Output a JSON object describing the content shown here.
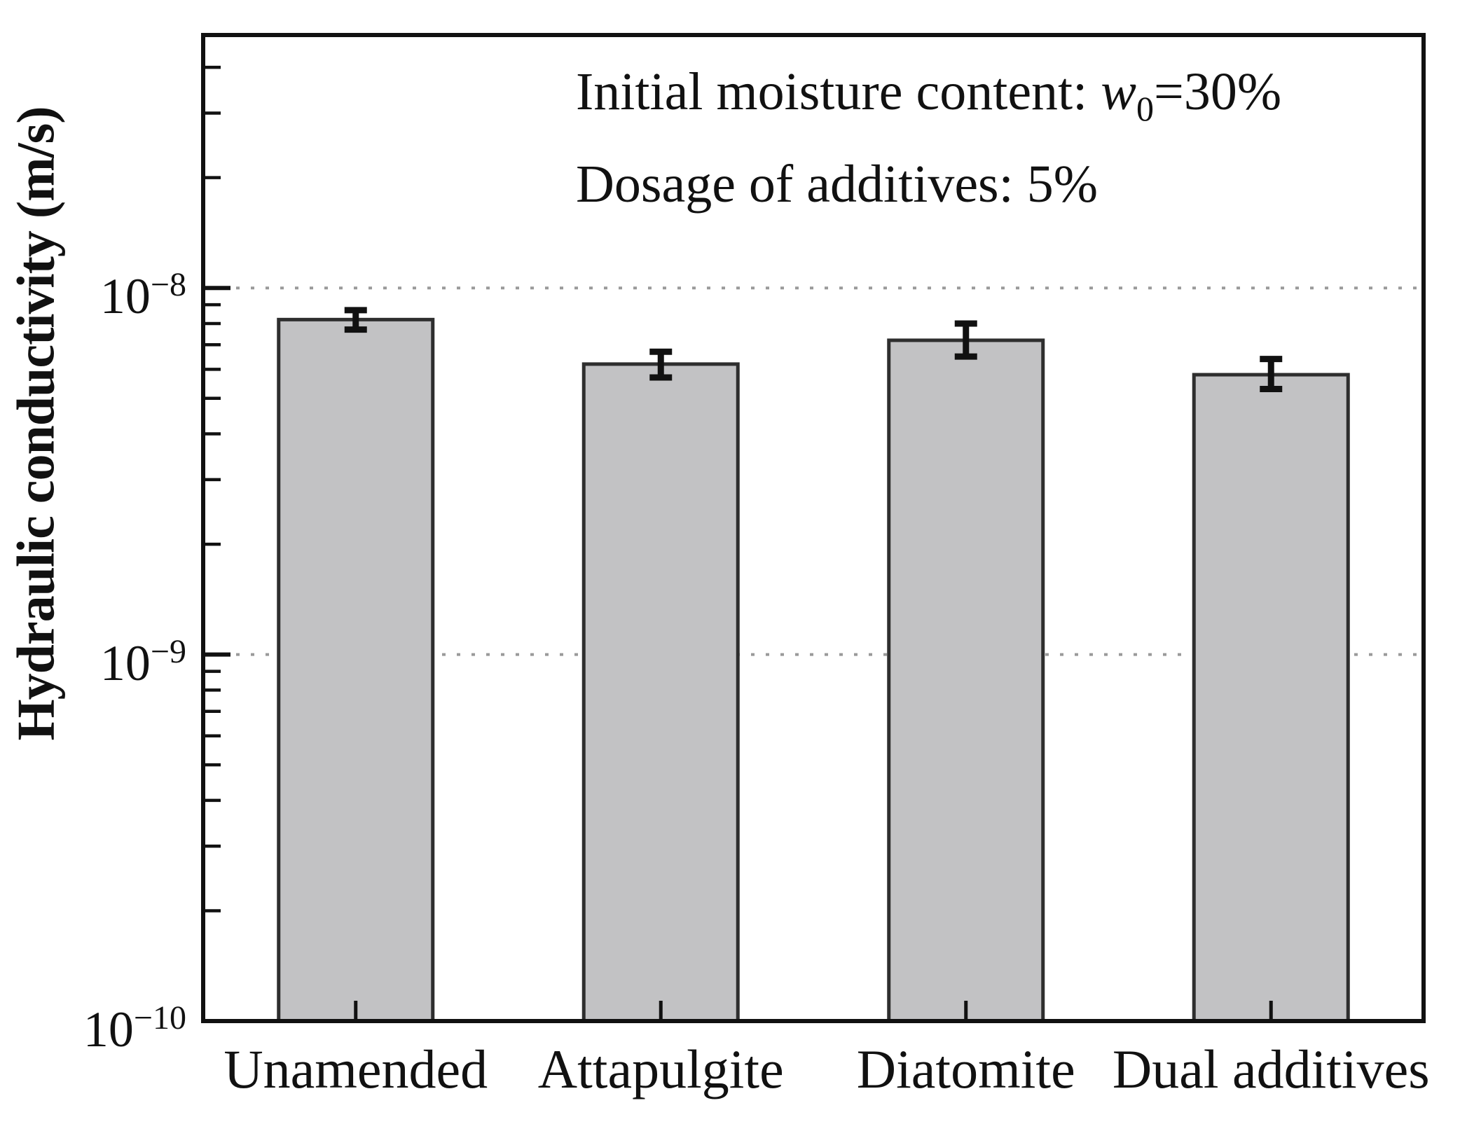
{
  "chart_data": {
    "type": "bar",
    "title": "",
    "xlabel": "",
    "ylabel": "Hydraulic conductivity (m/s)",
    "yscale": "log",
    "ylim": [
      1e-10,
      4.9e-08
    ],
    "grid": "dotted-horizontal-at-decades",
    "grid_y_values": [
      1e-08,
      1e-09
    ],
    "legend_position": "none",
    "y_tick_exponents": [
      -8,
      -9,
      -10
    ],
    "categories": [
      "Unamended",
      "Attapulgite",
      "Diatomite",
      "Dual additives"
    ],
    "values": [
      8.2e-09,
      6.2e-09,
      7.2e-09,
      5.8e-09
    ],
    "error_high": [
      8.7e-09,
      6.7e-09,
      8e-09,
      6.4e-09
    ],
    "error_low": [
      7.7e-09,
      5.7e-09,
      6.5e-09,
      5.3e-09
    ],
    "bar_fill_color": "#c2c2c4",
    "bar_edge_color": "#2e2e2e",
    "grid_color": "#9a9a9a",
    "axis_color": "#111111",
    "annotations": [
      {
        "prefix": "Initial moisture content: ",
        "var": "w",
        "sub": "0",
        "suffix": "=30%"
      },
      {
        "text": "Dosage of additives: 5%"
      }
    ]
  }
}
